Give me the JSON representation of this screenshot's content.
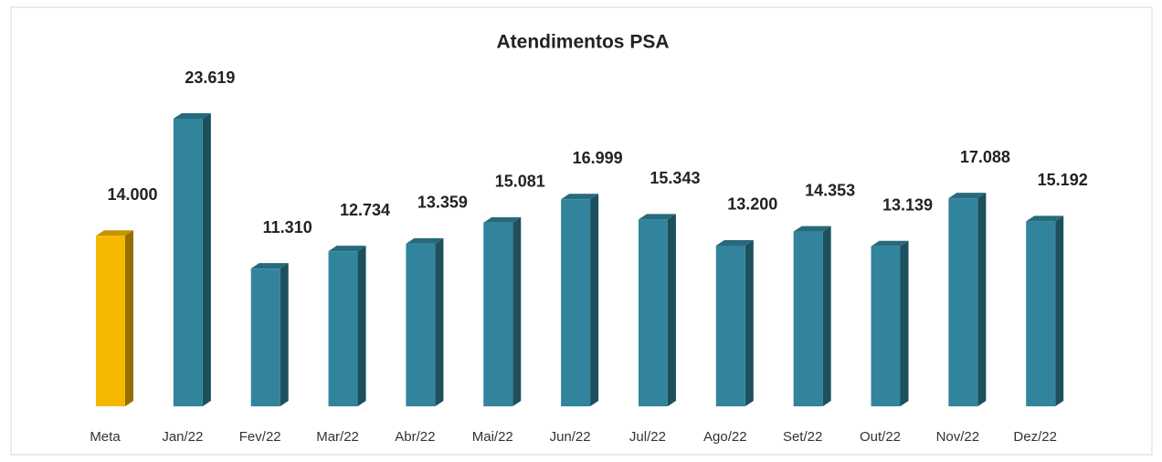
{
  "chart_data": {
    "type": "bar3d",
    "title": "Atendimentos PSA",
    "categories": [
      "Meta",
      "Jan/22",
      "Fev/22",
      "Mar/22",
      "Abr/22",
      "Mai/22",
      "Jun/22",
      "Jul/22",
      "Ago/22",
      "Set/22",
      "Out/22",
      "Nov/22",
      "Dez/22"
    ],
    "values": [
      14000,
      23619,
      11310,
      12734,
      13359,
      15081,
      16999,
      15343,
      13200,
      14353,
      13139,
      17088,
      15192
    ],
    "value_labels": [
      "14.000",
      "23.619",
      "11.310",
      "12.734",
      "13.359",
      "15.081",
      "16.999",
      "15.343",
      "13.200",
      "14.353",
      "13.139",
      "17.088",
      "15.192"
    ],
    "colors": [
      "#f5b800",
      "#31849b",
      "#31849b",
      "#31849b",
      "#31849b",
      "#31849b",
      "#31849b",
      "#31849b",
      "#31849b",
      "#31849b",
      "#31849b",
      "#31849b",
      "#31849b"
    ]
  }
}
